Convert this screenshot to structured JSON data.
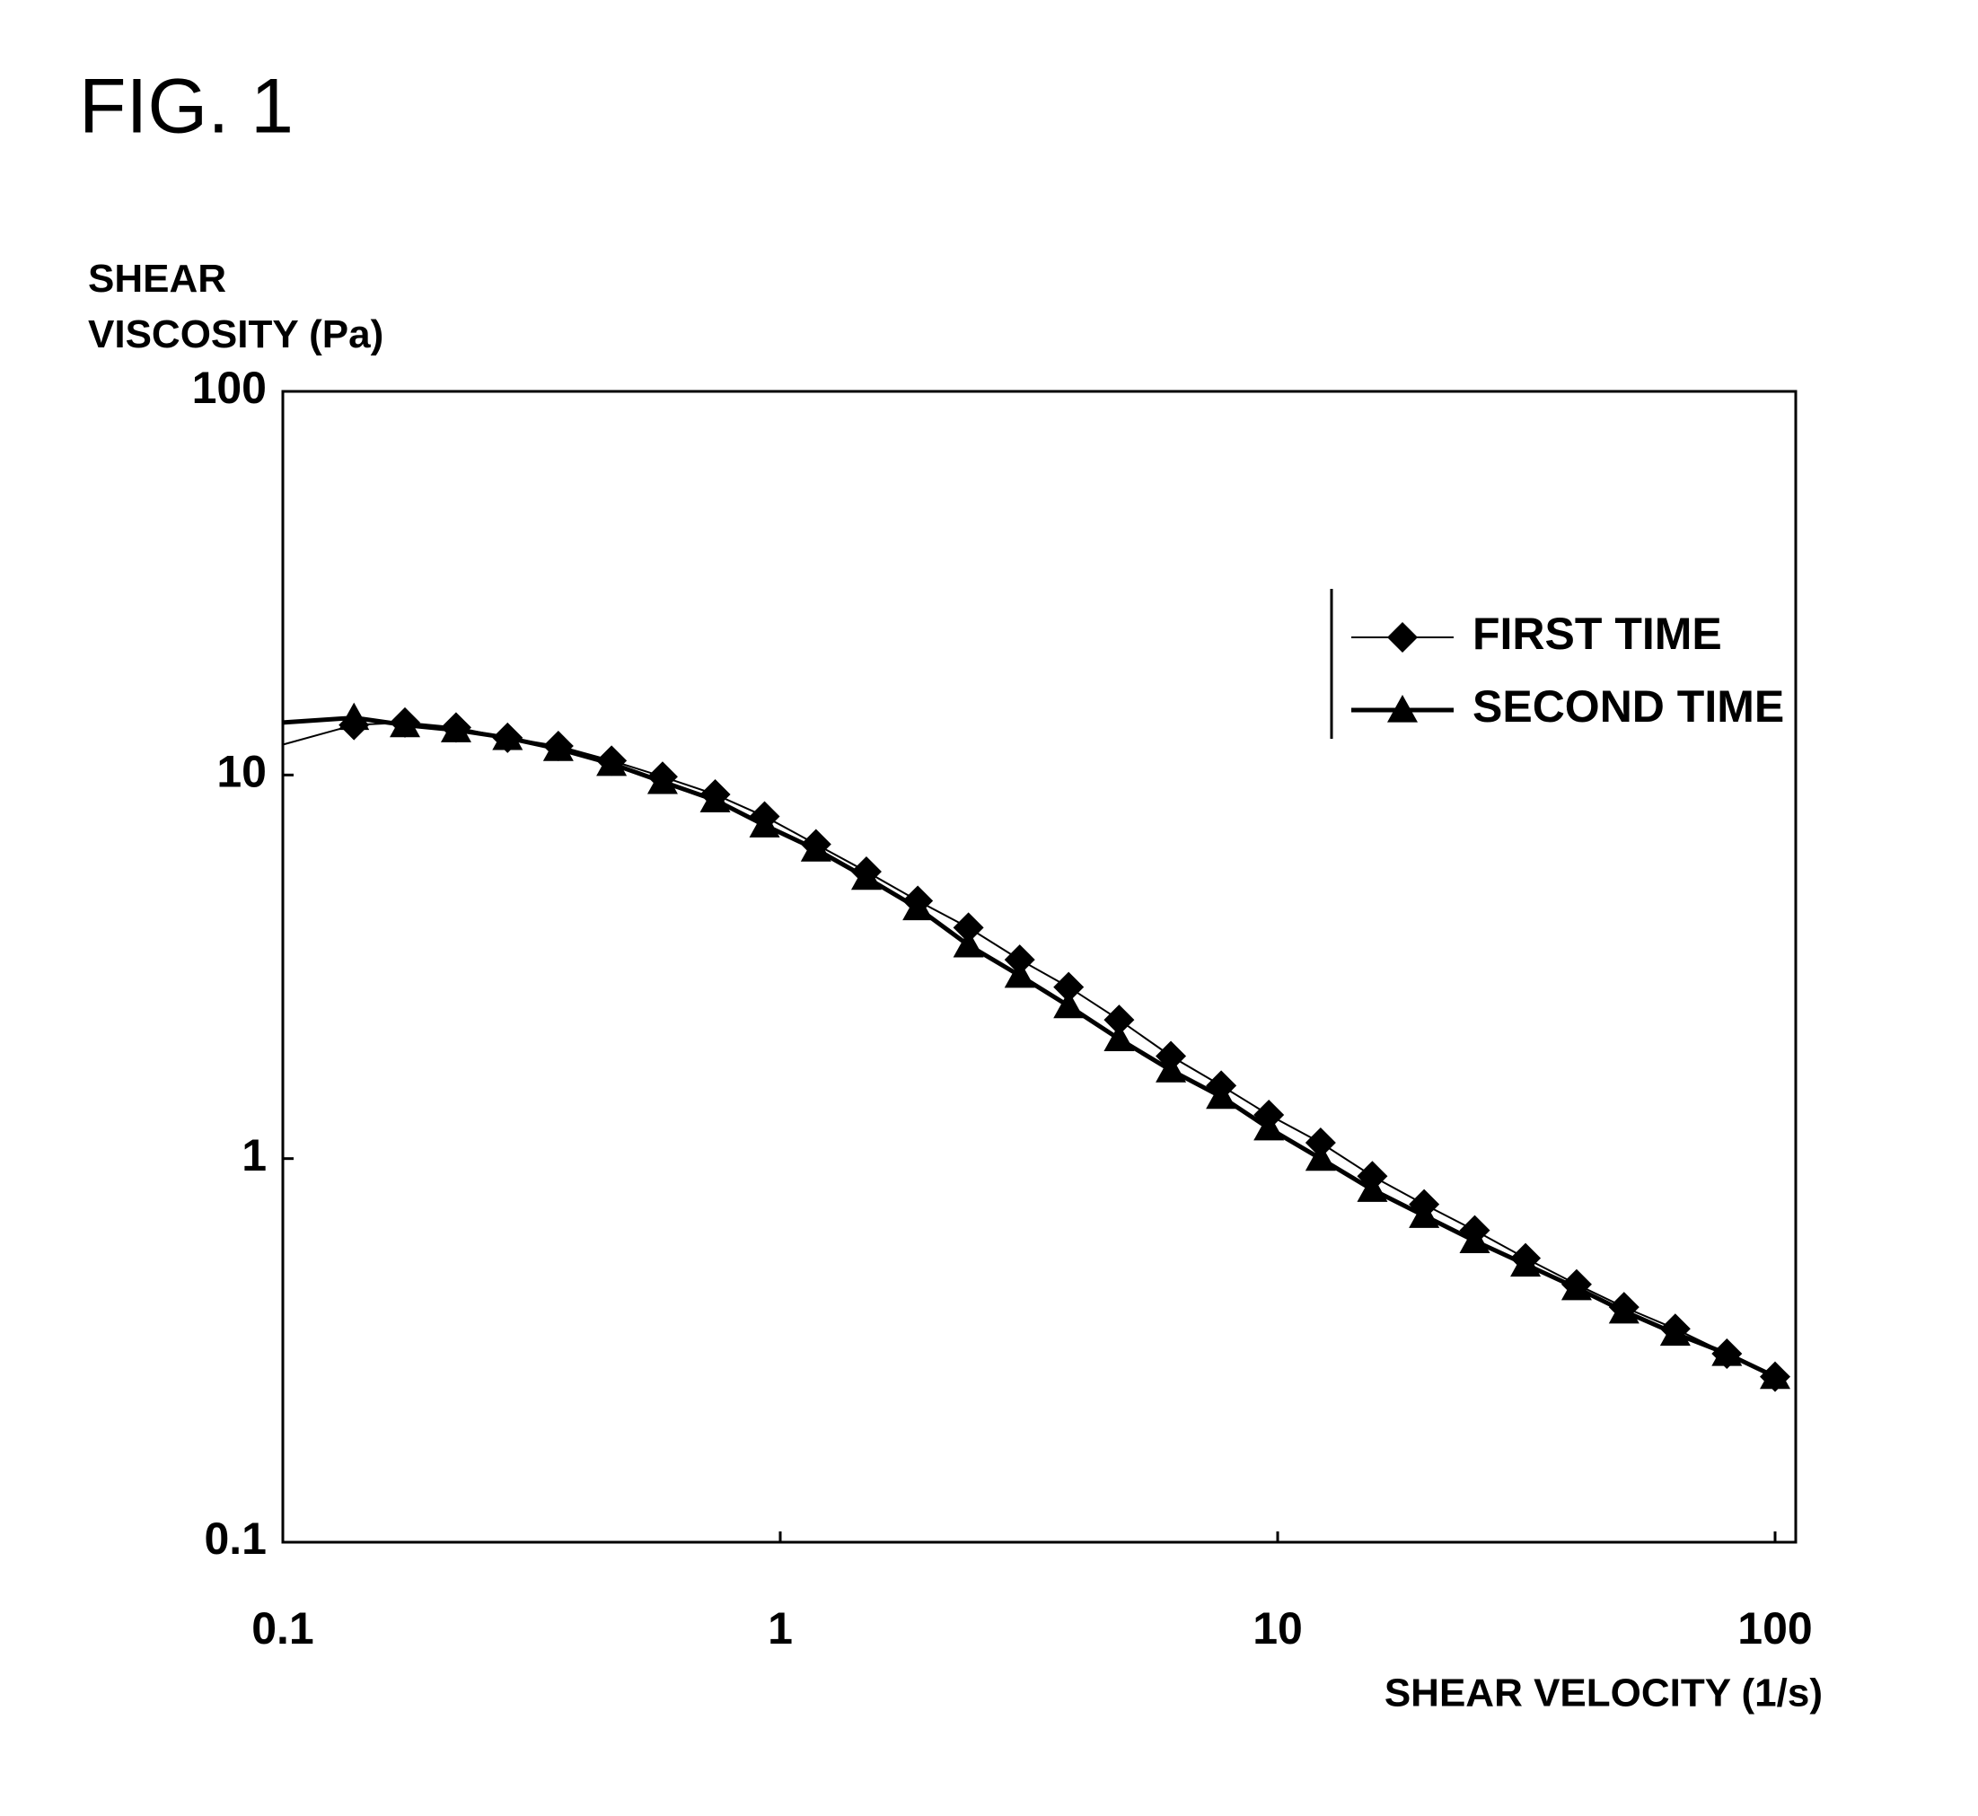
{
  "chart_data": {
    "type": "line",
    "title": "FIG. 1",
    "ylabel": "SHEAR VISCOSITY (Pa)",
    "xlabel": "SHEAR VELOCITY (1/s)",
    "xscale": "log",
    "yscale": "log",
    "xlim": [
      0.1,
      100
    ],
    "ylim": [
      0.1,
      100
    ],
    "xticks": [
      0.1,
      1,
      10,
      100
    ],
    "yticks": [
      0.1,
      1,
      10,
      100
    ],
    "legend": "upper right",
    "x": [
      0.1,
      0.139,
      0.176,
      0.223,
      0.283,
      0.358,
      0.458,
      0.58,
      0.74,
      0.93,
      1.18,
      1.49,
      1.89,
      2.39,
      3.03,
      3.8,
      4.8,
      6.1,
      7.7,
      9.6,
      12.2,
      15.5,
      19.7,
      24.9,
      31.5,
      39.9,
      49.7,
      63,
      80,
      100
    ],
    "series": [
      {
        "name": "FIRST TIME",
        "color": "#000000",
        "marker": "diamond",
        "line_width": 2,
        "values": [
          12.0,
          13.5,
          13.7,
          13.3,
          12.5,
          11.9,
          10.9,
          9.9,
          8.9,
          7.8,
          6.6,
          5.6,
          4.7,
          4.0,
          3.3,
          2.8,
          2.3,
          1.85,
          1.55,
          1.3,
          1.1,
          0.9,
          0.76,
          0.65,
          0.55,
          0.47,
          0.41,
          0.36,
          0.31,
          0.27
        ]
      },
      {
        "name": "SECOND TIME",
        "color": "#000000",
        "marker": "triangle",
        "line_width": 5,
        "values": [
          13.7,
          14.1,
          13.5,
          13.1,
          12.5,
          11.7,
          10.7,
          9.6,
          8.6,
          7.4,
          6.4,
          5.4,
          4.5,
          3.6,
          3.0,
          2.5,
          2.05,
          1.7,
          1.45,
          1.2,
          1.0,
          0.83,
          0.71,
          0.61,
          0.53,
          0.46,
          0.4,
          0.35,
          0.31,
          0.27
        ]
      }
    ]
  }
}
